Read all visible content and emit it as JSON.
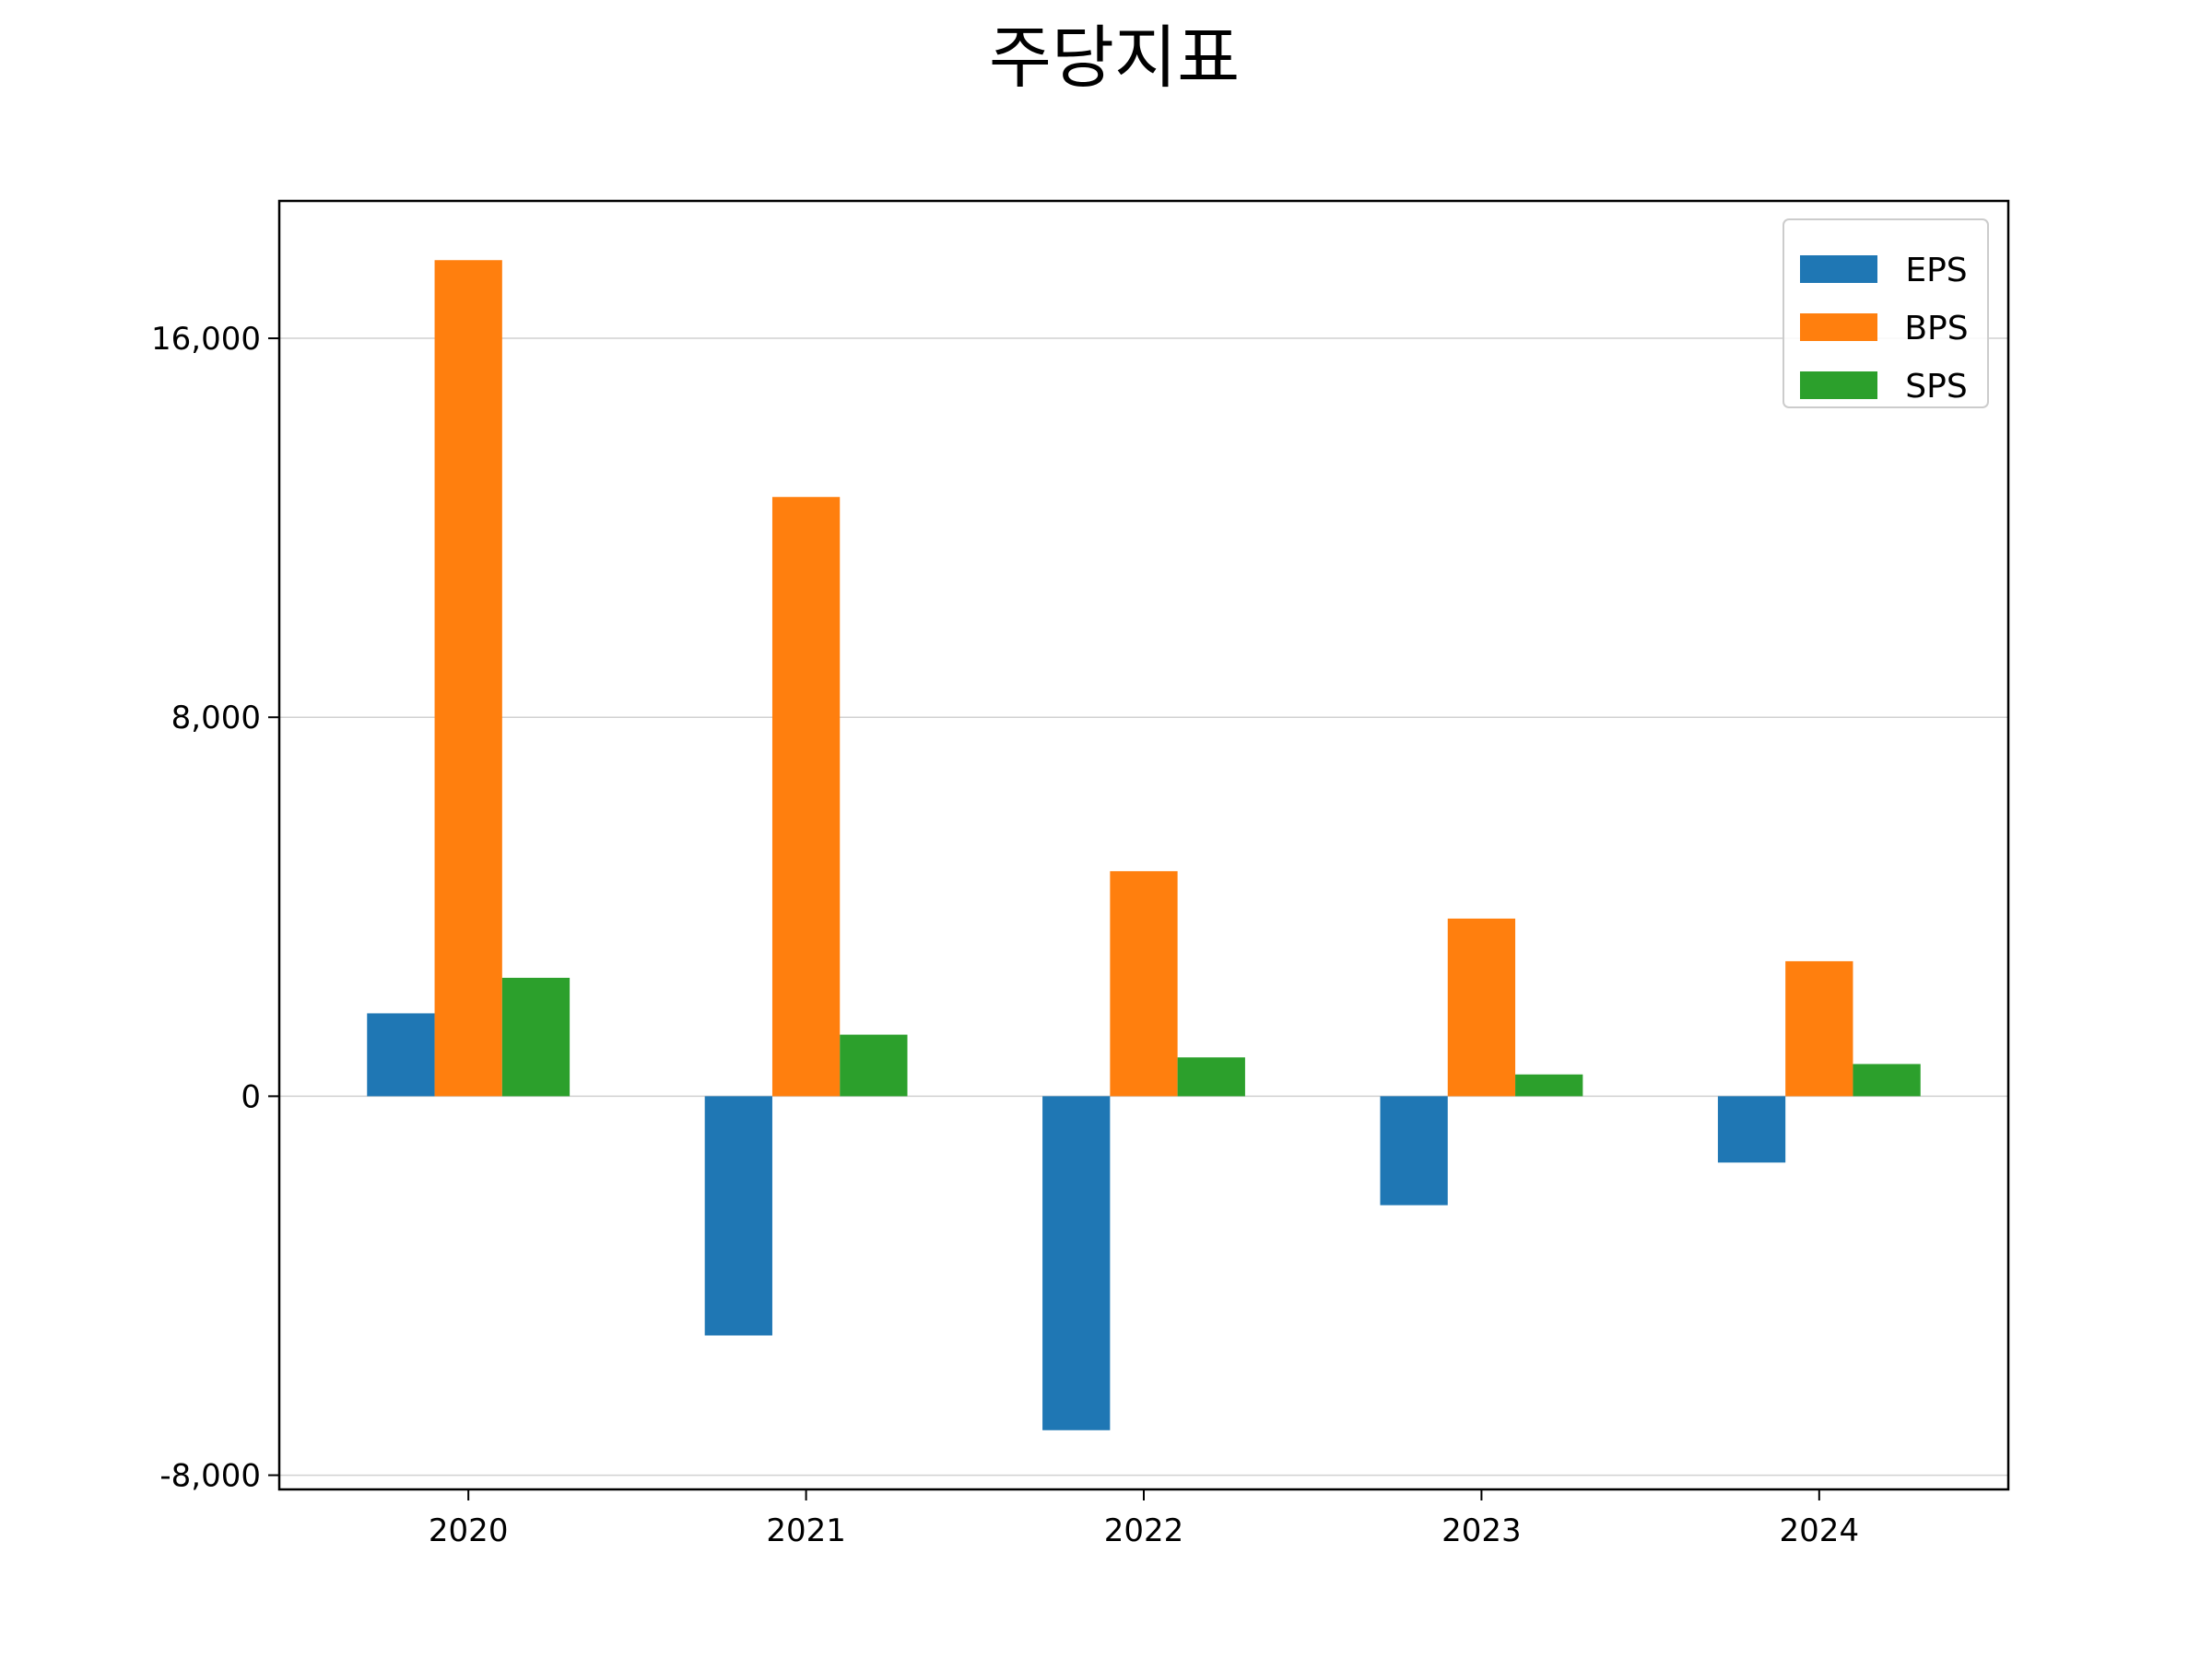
{
  "chart_data": {
    "type": "bar",
    "title": "주당지표",
    "xlabel": "",
    "ylabel": "",
    "categories": [
      "2020",
      "2021",
      "2022",
      "2023",
      "2024"
    ],
    "series": [
      {
        "name": "EPS",
        "color": "#1f77b4",
        "values": [
          1750,
          -5050,
          -7050,
          -2300,
          -1400
        ]
      },
      {
        "name": "BPS",
        "color": "#ff7f0e",
        "values": [
          17650,
          12650,
          4750,
          3750,
          2850
        ]
      },
      {
        "name": "SPS",
        "color": "#2ca02c",
        "values": [
          2500,
          1300,
          820,
          460,
          680
        ]
      }
    ],
    "ylim": [
      -8300,
      18900
    ],
    "yticks": [
      -8000,
      0,
      8000,
      16000
    ],
    "ytick_labels": [
      "-8,000",
      "0",
      "8,000",
      "16,000"
    ],
    "grid": true,
    "legend_position": "top-right"
  }
}
